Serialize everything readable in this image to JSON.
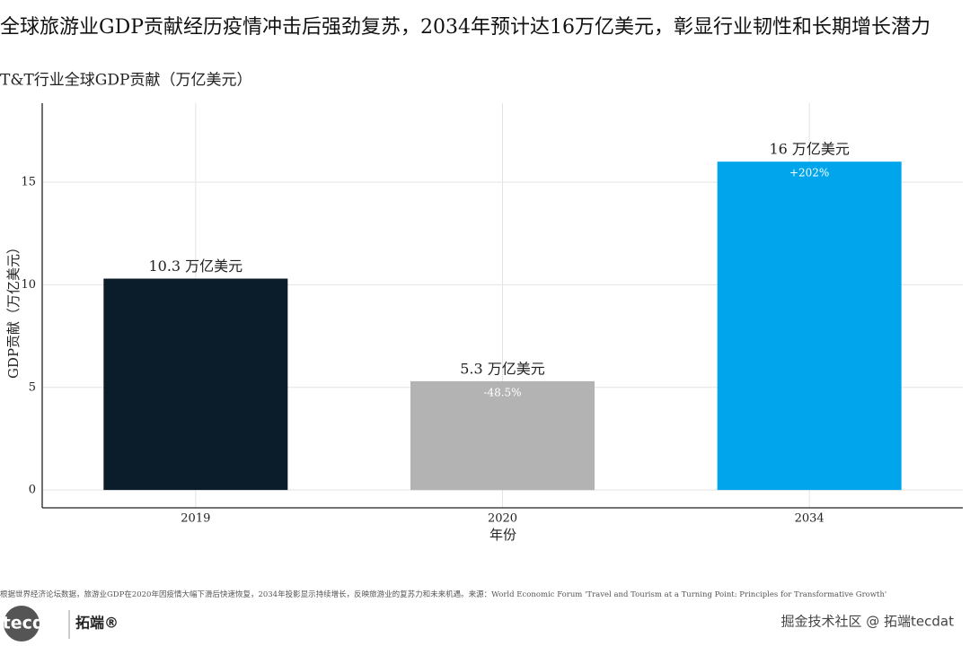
{
  "chart_data": {
    "type": "bar",
    "title": "全球旅游业GDP贡献经历疫情冲击后强劲复苏，2034年预计达16万亿美元，彰显行业韧性和长期增长潜力",
    "subtitle": "T&T行业全球GDP贡献（万亿美元）",
    "x_label": "年份",
    "y_label": "GDP贡献（万亿美元）",
    "categories": [
      "2019",
      "2020",
      "2034"
    ],
    "values": [
      10.3,
      5.3,
      16
    ],
    "value_labels": [
      "10.3 万亿美元",
      "5.3 万亿美元",
      "16 万亿美元"
    ],
    "colors": [
      "#0b1d2a",
      "#b3b3b3",
      "#00a5ec"
    ],
    "annotations": [
      {
        "category": "2020",
        "text": "-48.5%"
      },
      {
        "category": "2034",
        "text": "+202%"
      }
    ],
    "ylim": [
      -0.87,
      18.85
    ],
    "yticks": [
      0,
      5,
      10,
      15
    ],
    "grid": true,
    "caption": "根据世界经济论坛数据，旅游业GDP在2020年因疫情大幅下滑后快速恢复，2034年投影显示持续增长，反映旅游业的复苏力和未来机遇。来源：World Economic Forum 'Travel and Tourism at a Turning Point: Principles for Transformative Growth'"
  },
  "branding": {
    "logo": "tecdat",
    "name": "拓端®",
    "watermark": "掘金技术社区 @ 拓端tecdat"
  }
}
